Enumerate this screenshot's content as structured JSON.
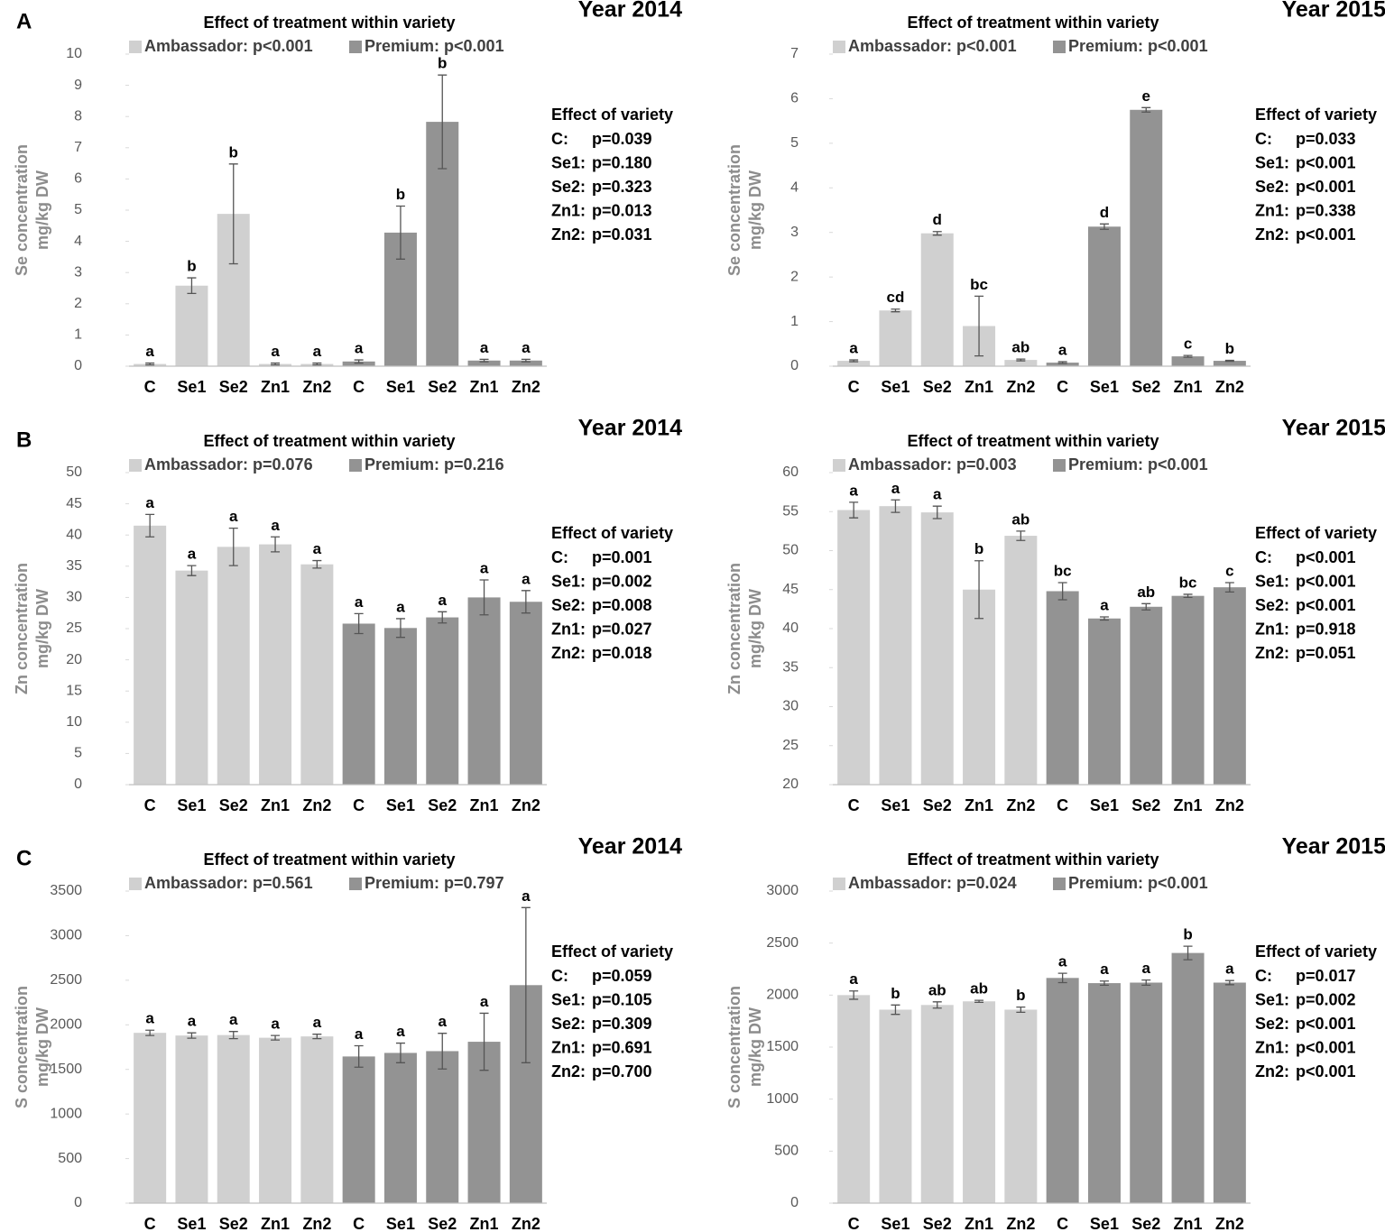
{
  "chart_data": [
    {
      "type": "bar",
      "panel": "A",
      "title": "Year 2014",
      "subtitle": "Effect of treatment within variety",
      "ylabel": [
        "Se concentration",
        "mg/kg DW"
      ],
      "categories": [
        "C",
        "Se1",
        "Se2",
        "Zn1",
        "Zn2",
        "C",
        "Se1",
        "Se2",
        "Zn1",
        "Zn2"
      ],
      "series": [
        {
          "name": "Ambassador: p<0.001",
          "color": "#d0d0d0",
          "values": [
            0.07,
            2.58,
            4.88,
            0.07,
            0.07,
            null,
            null,
            null,
            null,
            null
          ],
          "errors": [
            0.03,
            0.25,
            1.6,
            0.03,
            0.03,
            null,
            null,
            null,
            null,
            null
          ]
        },
        {
          "name": "Premium: p<0.001",
          "color": "#939393",
          "values": [
            null,
            null,
            null,
            null,
            null,
            0.15,
            4.28,
            7.83,
            0.18,
            0.18
          ],
          "errors": [
            null,
            null,
            null,
            null,
            null,
            0.05,
            0.85,
            1.5,
            0.04,
            0.04
          ]
        }
      ],
      "letters": [
        "a",
        "b",
        "b",
        "a",
        "a",
        "a",
        "b",
        "b",
        "a",
        "a"
      ],
      "ylim": [
        0,
        10
      ],
      "yticks": [
        0,
        1,
        2,
        3,
        4,
        5,
        6,
        7,
        8,
        9,
        10
      ],
      "variety_effect": {
        "title": "Effect of variety",
        "lines": [
          {
            "label": "C:",
            "p": "p=0.039"
          },
          {
            "label": "Se1:",
            "p": "p=0.180"
          },
          {
            "label": "Se2:",
            "p": "p=0.323"
          },
          {
            "label": "Zn1:",
            "p": "p=0.013"
          },
          {
            "label": "Zn2:",
            "p": "p=0.031"
          }
        ]
      }
    },
    {
      "type": "bar",
      "title": "Year 2015",
      "subtitle": "Effect of treatment within variety",
      "ylabel": [
        "Se concentration",
        "mg/kg DW"
      ],
      "categories": [
        "C",
        "Se1",
        "Se2",
        "Zn1",
        "Zn2",
        "C",
        "Se1",
        "Se2",
        "Zn1",
        "Zn2"
      ],
      "series": [
        {
          "name": "Ambassador: p<0.001",
          "color": "#d0d0d0",
          "values": [
            0.12,
            1.25,
            2.98,
            0.9,
            0.14,
            null,
            null,
            null,
            null,
            null
          ],
          "errors": [
            0.02,
            0.03,
            0.04,
            0.67,
            0.02,
            null,
            null,
            null,
            null,
            null
          ]
        },
        {
          "name": "Premium: p<0.001",
          "color": "#939393",
          "values": [
            null,
            null,
            null,
            null,
            null,
            0.08,
            3.13,
            5.75,
            0.22,
            0.12
          ],
          "errors": [
            null,
            null,
            null,
            null,
            null,
            0.02,
            0.06,
            0.05,
            0.02,
            0.01
          ]
        }
      ],
      "letters": [
        "a",
        "cd",
        "d",
        "bc",
        "ab",
        "a",
        "d",
        "e",
        "c",
        "b"
      ],
      "ylim": [
        0,
        7
      ],
      "yticks": [
        0,
        1,
        2,
        3,
        4,
        5,
        6,
        7
      ],
      "variety_effect": {
        "title": "Effect of variety",
        "lines": [
          {
            "label": "C:",
            "p": "p=0.033"
          },
          {
            "label": "Se1:",
            "p": "p<0.001"
          },
          {
            "label": "Se2:",
            "p": "p<0.001"
          },
          {
            "label": "Zn1:",
            "p": "p=0.338"
          },
          {
            "label": "Zn2:",
            "p": "p<0.001"
          }
        ]
      }
    },
    {
      "type": "bar",
      "panel": "B",
      "title": "Year 2014",
      "subtitle": "Effect of treatment within variety",
      "ylabel": [
        "Zn concentration",
        "mg/kg DW"
      ],
      "categories": [
        "C",
        "Se1",
        "Se2",
        "Zn1",
        "Zn2",
        "C",
        "Se1",
        "Se2",
        "Zn1",
        "Zn2"
      ],
      "series": [
        {
          "name": "Ambassador: p=0.076",
          "color": "#d0d0d0",
          "values": [
            41.5,
            34.3,
            38.1,
            38.5,
            35.3,
            null,
            null,
            null,
            null,
            null
          ],
          "errors": [
            1.8,
            0.8,
            3,
            1.2,
            0.6,
            null,
            null,
            null,
            null,
            null
          ]
        },
        {
          "name": "Premium: p=0.216",
          "color": "#939393",
          "values": [
            null,
            null,
            null,
            null,
            null,
            25.8,
            25.1,
            26.8,
            30,
            29.3
          ],
          "errors": [
            null,
            null,
            null,
            null,
            null,
            1.6,
            1.5,
            0.9,
            2.8,
            1.8
          ]
        }
      ],
      "letters": [
        "a",
        "a",
        "a",
        "a",
        "a",
        "a",
        "a",
        "a",
        "a",
        "a"
      ],
      "ylim": [
        0,
        50
      ],
      "yticks": [
        0,
        5,
        10,
        15,
        20,
        25,
        30,
        35,
        40,
        45,
        50
      ],
      "variety_effect": {
        "title": "Effect of variety",
        "lines": [
          {
            "label": "C:",
            "p": "p=0.001"
          },
          {
            "label": "Se1:",
            "p": "p=0.002"
          },
          {
            "label": "Se2:",
            "p": "p=0.008"
          },
          {
            "label": "Zn1:",
            "p": "p=0.027"
          },
          {
            "label": "Zn2:",
            "p": "p=0.018"
          }
        ]
      }
    },
    {
      "type": "bar",
      "title": "Year 2015",
      "subtitle": "Effect of treatment within variety",
      "ylabel": [
        "Zn concentration",
        "mg/kg DW"
      ],
      "categories": [
        "C",
        "Se1",
        "Se2",
        "Zn1",
        "Zn2",
        "C",
        "Se1",
        "Se2",
        "Zn1",
        "Zn2"
      ],
      "series": [
        {
          "name": "Ambassador: p=0.003",
          "color": "#d0d0d0",
          "values": [
            55.2,
            55.7,
            54.9,
            45,
            51.9,
            null,
            null,
            null,
            null,
            null
          ],
          "errors": [
            1,
            0.8,
            0.8,
            3.7,
            0.6,
            null,
            null,
            null,
            null,
            null
          ]
        },
        {
          "name": "Premium: p<0.001",
          "color": "#939393",
          "values": [
            null,
            null,
            null,
            null,
            null,
            44.8,
            41.3,
            42.8,
            44.2,
            45.3
          ],
          "errors": [
            null,
            null,
            null,
            null,
            null,
            1.1,
            0.2,
            0.4,
            0.2,
            0.6
          ]
        }
      ],
      "letters": [
        "a",
        "a",
        "a",
        "b",
        "ab",
        "bc",
        "a",
        "ab",
        "bc",
        "c"
      ],
      "ylim": [
        20,
        60
      ],
      "yticks": [
        20,
        25,
        30,
        35,
        40,
        45,
        50,
        55,
        60
      ],
      "variety_effect": {
        "title": "Effect of variety",
        "lines": [
          {
            "label": "C:",
            "p": "p<0.001"
          },
          {
            "label": "Se1:",
            "p": "p<0.001"
          },
          {
            "label": "Se2:",
            "p": "p<0.001"
          },
          {
            "label": "Zn1:",
            "p": "p=0.918"
          },
          {
            "label": "Zn2:",
            "p": "p=0.051"
          }
        ]
      }
    },
    {
      "type": "bar",
      "panel": "C",
      "title": "Year 2014",
      "subtitle": "Effect of treatment within variety",
      "ylabel": [
        "S concentration",
        "mg/kg DW"
      ],
      "categories": [
        "C",
        "Se1",
        "Se2",
        "Zn1",
        "Zn2",
        "C",
        "Se1",
        "Se2",
        "Zn1",
        "Zn2"
      ],
      "series": [
        {
          "name": "Ambassador: p=0.561",
          "color": "#d0d0d0",
          "values": [
            1910,
            1880,
            1885,
            1855,
            1870,
            null,
            null,
            null,
            null,
            null
          ],
          "errors": [
            30,
            30,
            40,
            25,
            25,
            null,
            null,
            null,
            null,
            null
          ]
        },
        {
          "name": "Premium: p=0.797",
          "color": "#939393",
          "values": [
            null,
            null,
            null,
            null,
            null,
            1645,
            1685,
            1705,
            1810,
            2445
          ],
          "errors": [
            null,
            null,
            null,
            null,
            null,
            120,
            110,
            200,
            320,
            870
          ]
        }
      ],
      "letters": [
        "a",
        "a",
        "a",
        "a",
        "a",
        "a",
        "a",
        "a",
        "a",
        "a"
      ],
      "ylim": [
        0,
        3500
      ],
      "yticks": [
        0,
        500,
        1000,
        1500,
        2000,
        2500,
        3000,
        3500
      ],
      "variety_effect": {
        "title": "Effect of variety",
        "lines": [
          {
            "label": "C:",
            "p": "p=0.059"
          },
          {
            "label": "Se1:",
            "p": "p=0.105"
          },
          {
            "label": "Se2:",
            "p": "p=0.309"
          },
          {
            "label": "Zn1:",
            "p": "p=0.691"
          },
          {
            "label": "Zn2:",
            "p": "p=0.700"
          }
        ]
      }
    },
    {
      "type": "bar",
      "title": "Year 2015",
      "subtitle": "Effect of treatment within variety",
      "ylabel": [
        "S concentration",
        "mg/kg DW"
      ],
      "categories": [
        "C",
        "Se1",
        "Se2",
        "Zn1",
        "Zn2",
        "C",
        "Se1",
        "Se2",
        "Zn1",
        "Zn2"
      ],
      "series": [
        {
          "name": "Ambassador: p=0.024",
          "color": "#d0d0d0",
          "values": [
            2000,
            1860,
            1905,
            1940,
            1860,
            null,
            null,
            null,
            null,
            null
          ],
          "errors": [
            40,
            45,
            30,
            10,
            25,
            null,
            null,
            null,
            null,
            null
          ]
        },
        {
          "name": "Premium: p<0.001",
          "color": "#939393",
          "values": [
            null,
            null,
            null,
            null,
            null,
            2165,
            2115,
            2120,
            2405,
            2120
          ],
          "errors": [
            null,
            null,
            null,
            null,
            null,
            45,
            20,
            25,
            65,
            20
          ]
        }
      ],
      "letters": [
        "a",
        "b",
        "ab",
        "ab",
        "b",
        "a",
        "a",
        "a",
        "b",
        "a"
      ],
      "ylim": [
        0,
        3000
      ],
      "yticks": [
        0,
        500,
        1000,
        1500,
        2000,
        2500,
        3000
      ],
      "variety_effect": {
        "title": "Effect of variety",
        "lines": [
          {
            "label": "C:",
            "p": "p=0.017"
          },
          {
            "label": "Se1:",
            "p": "p=0.002"
          },
          {
            "label": "Se2:",
            "p": "p<0.001"
          },
          {
            "label": "Zn1:",
            "p": "p<0.001"
          },
          {
            "label": "Zn2:",
            "p": "p<0.001"
          }
        ]
      }
    }
  ]
}
